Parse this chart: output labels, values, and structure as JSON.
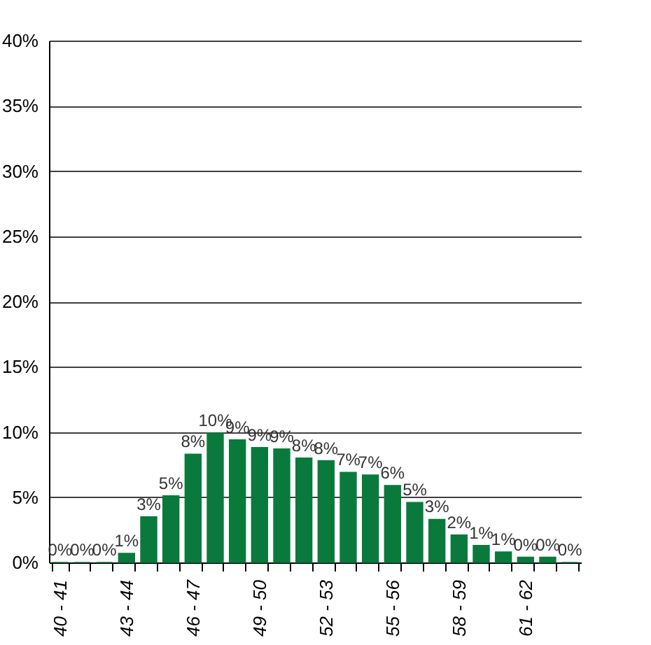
{
  "chart_data": {
    "type": "bar",
    "categories": [
      "40 - 41",
      null,
      null,
      "43 - 44",
      null,
      null,
      "46 - 47",
      null,
      null,
      "49 - 50",
      null,
      null,
      "52 - 53",
      null,
      null,
      "55 - 56",
      null,
      null,
      "58 - 59",
      null,
      null,
      "61 - 62",
      null,
      null
    ],
    "values": [
      0,
      0,
      0,
      0.7,
      3.5,
      5.1,
      8.3,
      9.9,
      9.4,
      8.8,
      8.7,
      8.0,
      7.8,
      6.9,
      6.7,
      5.9,
      4.6,
      3.3,
      2.1,
      1.3,
      0.8,
      0.4,
      0.4,
      0
    ],
    "value_labels": [
      "0%",
      "0%",
      "0%",
      "1%",
      "3%",
      "5%",
      "8%",
      "10%",
      "9%",
      "9%",
      "9%",
      "8%",
      "8%",
      "7%",
      "7%",
      "6%",
      "5%",
      "3%",
      "2%",
      "1%",
      "1%",
      "0%",
      "0%",
      "0%"
    ],
    "color": "#0a7a3c",
    "ylim": [
      0,
      40
    ],
    "yticks": [
      {
        "value": 0,
        "label": "0%"
      },
      {
        "value": 5,
        "label": "5%"
      },
      {
        "value": 10,
        "label": "10%"
      },
      {
        "value": 15,
        "label": "15%"
      },
      {
        "value": 20,
        "label": "20%"
      },
      {
        "value": 25,
        "label": "25%"
      },
      {
        "value": 30,
        "label": "30%"
      },
      {
        "value": 35,
        "label": "35%"
      },
      {
        "value": 40,
        "label": "40%"
      }
    ],
    "grid": "y"
  }
}
